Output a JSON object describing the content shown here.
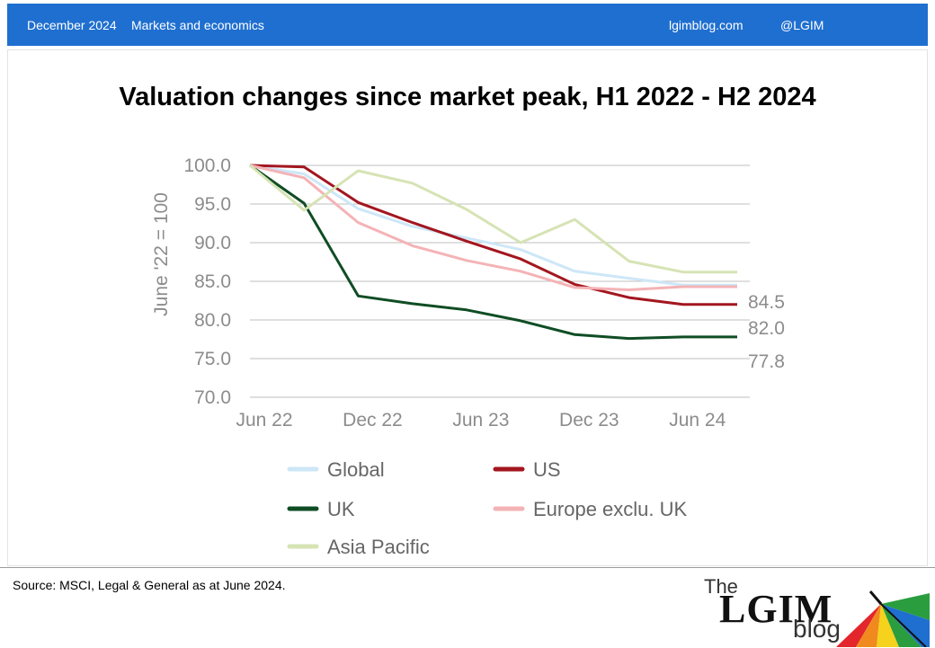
{
  "header": {
    "date": "December 2024",
    "category": "Markets and economics",
    "site": "lgimblog.com",
    "handle": "@LGIM",
    "bar_color": "#1f6fd0"
  },
  "footer": {
    "source": "Source: MSCI, Legal & General as at June 2024.",
    "brand_the": "The",
    "brand_lgim": "LGIM",
    "brand_blog": "blog"
  },
  "chart_data": {
    "type": "line",
    "title": "Valuation changes since market peak, H1 2022 - H2 2024",
    "ylabel": "June '22 = 100",
    "xlabel": "",
    "ylim": [
      70,
      100
    ],
    "yticks": [
      "100.0",
      "95.0",
      "90.0",
      "85.0",
      "80.0",
      "75.0",
      "70.0"
    ],
    "x_tick_labels": [
      "Jun 22",
      "Dec 22",
      "Jun 23",
      "Dec 23",
      "Jun 24"
    ],
    "grid": true,
    "legend_position": "bottom",
    "end_labels": [
      "84.5",
      "82.0",
      "77.8"
    ],
    "x": [
      0,
      1,
      2,
      3,
      4,
      5,
      6,
      7,
      8,
      9
    ],
    "series": [
      {
        "name": "Global",
        "color": "#cde7f7",
        "values": [
          100.0,
          98.9,
          94.4,
          92.1,
          90.6,
          89.1,
          86.3,
          85.4,
          84.5,
          84.5
        ]
      },
      {
        "name": "US",
        "color": "#a3161f",
        "values": [
          100.0,
          99.8,
          95.2,
          92.6,
          90.2,
          87.9,
          84.6,
          82.9,
          82.0,
          82.0
        ]
      },
      {
        "name": "UK",
        "color": "#0f4d24",
        "values": [
          100.0,
          95.1,
          83.1,
          82.1,
          81.3,
          79.9,
          78.1,
          77.6,
          77.8,
          77.8
        ]
      },
      {
        "name": "Europe exclu. UK",
        "color": "#f4b3b6",
        "values": [
          100.0,
          98.4,
          92.6,
          89.6,
          87.7,
          86.3,
          84.2,
          83.9,
          84.3,
          84.3
        ]
      },
      {
        "name": "Asia Pacific",
        "color": "#d6e3b4",
        "values": [
          100.0,
          94.2,
          99.3,
          97.7,
          94.3,
          90.0,
          93.0,
          87.6,
          86.2,
          86.2
        ]
      }
    ]
  }
}
